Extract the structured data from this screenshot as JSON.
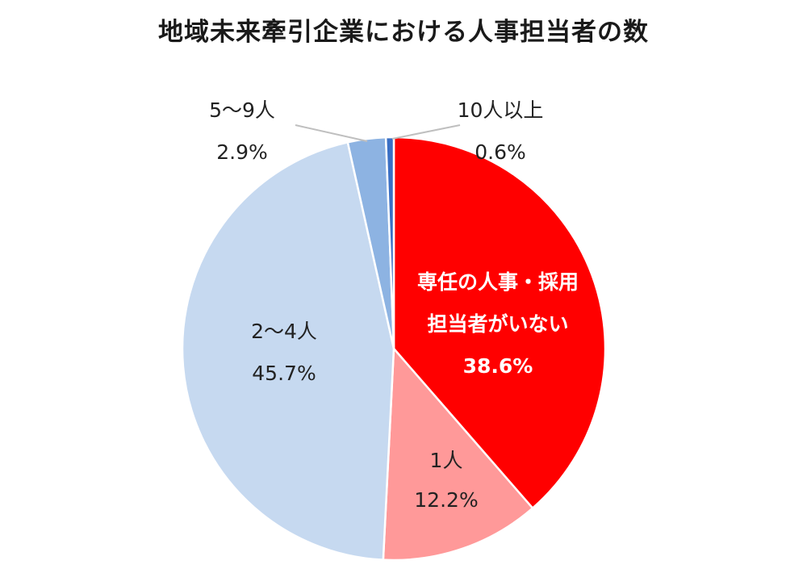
{
  "chart_data": {
    "type": "pie",
    "title": "地域未来牽引企業における人事担当者の数",
    "slices": [
      {
        "label": [
          "専任の人事・採用",
          "担当者がいない"
        ],
        "value": 38.6,
        "value_label": "38.6%",
        "color": "#ff0000",
        "text_color": "#ffffff"
      },
      {
        "label": [
          "1人"
        ],
        "value": 12.2,
        "value_label": "12.2%",
        "color": "#ff9999",
        "text_color": "#222222"
      },
      {
        "label": [
          "2～4人"
        ],
        "value": 45.7,
        "value_label": "45.7%",
        "color": "#c6d9f0",
        "text_color": "#222222"
      },
      {
        "label": [
          "5～9人"
        ],
        "value": 2.9,
        "value_label": "2.9%",
        "color": "#8db3e2",
        "text_color": "#222222"
      },
      {
        "label": [
          "10人以上"
        ],
        "value": 0.6,
        "value_label": "0.6%",
        "color": "#3a6fc4",
        "text_color": "#222222"
      }
    ]
  }
}
